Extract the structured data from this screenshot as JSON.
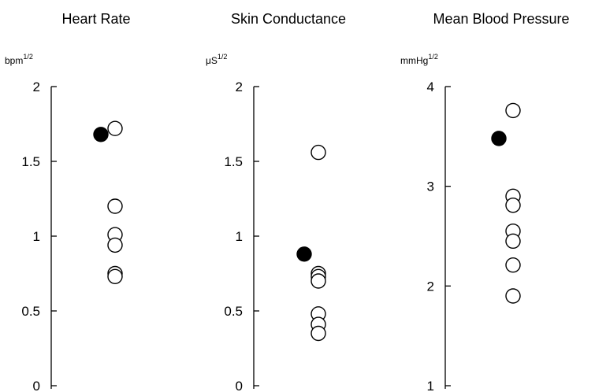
{
  "chart_data": [
    {
      "type": "scatter",
      "title": "Heart Rate",
      "ylabel": "bpm",
      "ylabel_sup": "1/2",
      "ylim": [
        0,
        2
      ],
      "yticks": [
        0,
        0.5,
        1,
        1.5,
        2
      ],
      "ytick_labels": [
        "0",
        "0.5",
        "1",
        "1.5",
        "2"
      ],
      "grid": false,
      "series": [
        {
          "filled": true,
          "points": [
            {
              "x": 0,
              "y": 1.68
            }
          ]
        },
        {
          "filled": false,
          "points": [
            {
              "x": 1,
              "y": 1.72
            },
            {
              "x": 1,
              "y": 1.2
            },
            {
              "x": 1,
              "y": 1.01
            },
            {
              "x": 1,
              "y": 0.94
            },
            {
              "x": 1,
              "y": 0.75
            },
            {
              "x": 1,
              "y": 0.73
            }
          ]
        }
      ]
    },
    {
      "type": "scatter",
      "title": "Skin Conductance",
      "ylabel": "μS",
      "ylabel_sup": "1/2",
      "ylim": [
        0,
        2
      ],
      "yticks": [
        0,
        0.5,
        1,
        1.5,
        2
      ],
      "ytick_labels": [
        "0",
        "0.5",
        "1",
        "1.5",
        "2"
      ],
      "grid": false,
      "series": [
        {
          "filled": true,
          "points": [
            {
              "x": 0,
              "y": 0.88
            }
          ]
        },
        {
          "filled": false,
          "points": [
            {
              "x": 1,
              "y": 1.56
            },
            {
              "x": 1,
              "y": 0.75
            },
            {
              "x": 1,
              "y": 0.73
            },
            {
              "x": 1,
              "y": 0.7
            },
            {
              "x": 1,
              "y": 0.48
            },
            {
              "x": 1,
              "y": 0.41
            },
            {
              "x": 1,
              "y": 0.35
            }
          ]
        }
      ]
    },
    {
      "type": "scatter",
      "title": "Mean Blood Pressure",
      "ylabel": "mmHg",
      "ylabel_sup": "1/2",
      "ylim": [
        1,
        4
      ],
      "yticks": [
        1,
        2,
        3,
        4
      ],
      "ytick_labels": [
        "1",
        "2",
        "3",
        "4"
      ],
      "grid": false,
      "series": [
        {
          "filled": true,
          "points": [
            {
              "x": 0,
              "y": 3.48
            }
          ]
        },
        {
          "filled": false,
          "points": [
            {
              "x": 1,
              "y": 3.76
            },
            {
              "x": 1,
              "y": 2.9
            },
            {
              "x": 1,
              "y": 2.81
            },
            {
              "x": 1,
              "y": 2.55
            },
            {
              "x": 1,
              "y": 2.45
            },
            {
              "x": 1,
              "y": 2.21
            },
            {
              "x": 1,
              "y": 1.9
            }
          ]
        }
      ]
    }
  ]
}
